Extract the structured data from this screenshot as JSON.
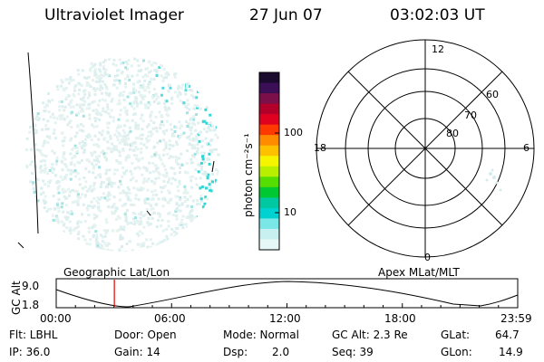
{
  "header": {
    "title": "Ultraviolet Imager",
    "date": "27 Jun 07",
    "time": "03:02:03 UT"
  },
  "colorbar": {
    "unit_label": "photon cm⁻²s⁻¹",
    "ticks": [
      "100",
      "10"
    ],
    "colors": [
      "#1a0a2e",
      "#3b0f55",
      "#7a0f4a",
      "#b3002a",
      "#e0001f",
      "#ff3a00",
      "#ff8c00",
      "#ffc000",
      "#f5f500",
      "#b8ef00",
      "#55dc00",
      "#00c832",
      "#00c8a0",
      "#00d2d2",
      "#7ae6e6",
      "#c8f0f0",
      "#e6f7f7"
    ]
  },
  "polar": {
    "top_label": "12",
    "bottom_label": "0",
    "left_label": "18",
    "right_label": "6",
    "rings": [
      "60",
      "70",
      "80"
    ]
  },
  "strip": {
    "left_title": "Geographic Lat/Lon",
    "right_title": "Apex MLat/MLT",
    "y_axis_label": "GC Alt",
    "y_ticks": [
      "9.0",
      "1.8"
    ],
    "x_ticks": [
      "00:00",
      "06:00",
      "12:00",
      "18:00",
      "23:59"
    ],
    "marker_time_fraction": 0.126,
    "marker_color": "#e00000"
  },
  "status": {
    "filter": "Flt: LBHL",
    "ip": "IP: 36.0",
    "door": "Door: Open",
    "gain": "Gain: 14",
    "mode": "Mode: Normal",
    "dsp": "Dsp:",
    "dsp_val": "2.0",
    "gc_alt": "GC Alt: 2.3 Re",
    "seq": "Seq: 39",
    "glat": "GLat:",
    "glat_val": "64.7",
    "glon": "GLon:",
    "glon_val": "14.9"
  }
}
